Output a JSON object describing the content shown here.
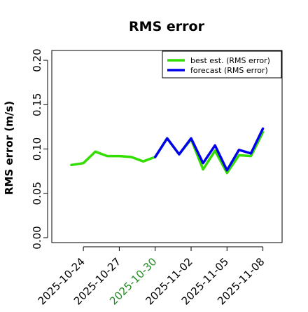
{
  "chart_data": {
    "type": "line",
    "title": "RMS error",
    "xlabel": "",
    "ylabel": "RMS error (m/s)",
    "x": [
      "2025-10-23",
      "2025-10-24",
      "2025-10-25",
      "2025-10-26",
      "2025-10-27",
      "2025-10-28",
      "2025-10-29",
      "2025-10-30",
      "2025-10-31",
      "2025-11-01",
      "2025-11-02",
      "2025-11-03",
      "2025-11-04",
      "2025-11-05",
      "2025-11-06",
      "2025-11-07",
      "2025-11-08"
    ],
    "xticks": [
      "2025-10-24",
      "2025-10-27",
      "2025-10-30",
      "2025-11-02",
      "2025-11-05",
      "2025-11-08"
    ],
    "xtick_colors": [
      "#000000",
      "#000000",
      "#228B22",
      "#000000",
      "#000000",
      "#000000"
    ],
    "yticks": [
      "0.00",
      "0.05",
      "0.10",
      "0.15",
      "0.20"
    ],
    "ylim": [
      0,
      0.21
    ],
    "grid": false,
    "legend_position": "top-right",
    "series": [
      {
        "name": "best est. (RMS error)",
        "color": "#33dd00",
        "values": [
          0.082,
          0.084,
          0.097,
          0.092,
          0.092,
          0.091,
          0.086,
          0.091,
          0.112,
          0.094,
          0.111,
          0.077,
          0.098,
          0.073,
          0.093,
          0.092,
          0.119
        ]
      },
      {
        "name": "forecast (RMS error)",
        "color": "#0000ee",
        "values": [
          null,
          null,
          null,
          null,
          null,
          null,
          null,
          0.091,
          0.112,
          0.094,
          0.112,
          0.084,
          0.104,
          0.076,
          0.099,
          0.095,
          0.123
        ]
      }
    ]
  }
}
